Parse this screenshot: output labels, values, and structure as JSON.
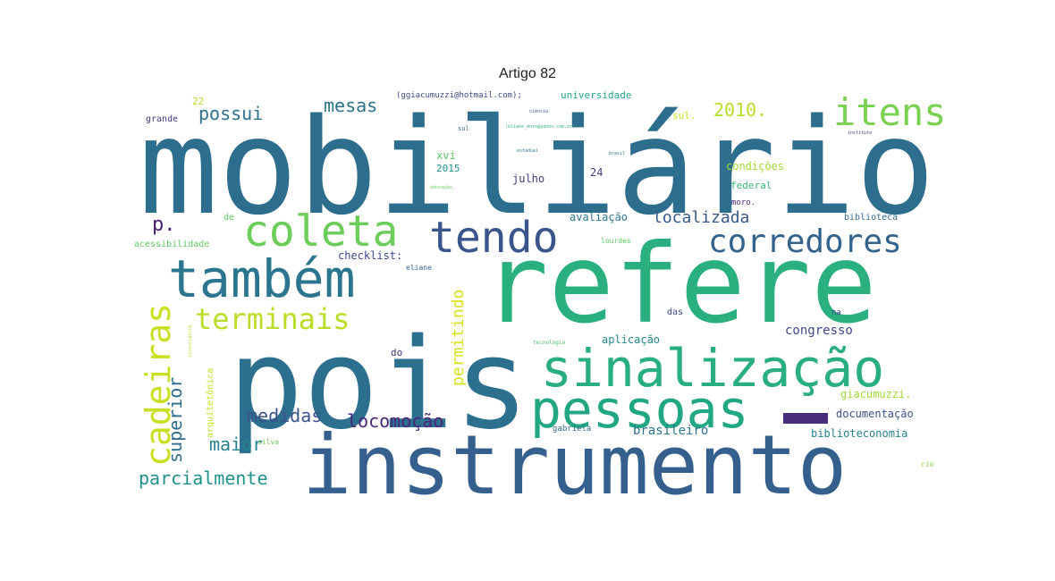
{
  "title": "Artigo 82",
  "chart_data": {
    "type": "wordcloud",
    "title": "Artigo 82",
    "colormap": "viridis",
    "words": [
      {
        "text": "mobiliário",
        "color": "#2d6e8e"
      },
      {
        "text": "refere",
        "color": "#2ab07f"
      },
      {
        "text": "pois",
        "color": "#2c6f8e"
      },
      {
        "text": "instrumento",
        "color": "#35608d"
      },
      {
        "text": "sinalização",
        "color": "#28ae80"
      },
      {
        "text": "pessoas",
        "color": "#22a785"
      },
      {
        "text": "também",
        "color": "#2b758e"
      },
      {
        "text": "coleta",
        "color": "#6ccd5a"
      },
      {
        "text": "tendo",
        "color": "#3a548c"
      },
      {
        "text": "itens",
        "color": "#7ad151"
      },
      {
        "text": "corredores",
        "color": "#33638d"
      },
      {
        "text": "cadeiras",
        "color": "#c8e020"
      },
      {
        "text": "terminais",
        "color": "#bade28"
      },
      {
        "text": "medidas",
        "color": "#3b528b"
      },
      {
        "text": "locomoção",
        "color": "#482878"
      },
      {
        "text": "superior",
        "color": "#2e6e8e"
      },
      {
        "text": "maior",
        "color": "#26828e"
      },
      {
        "text": "parcialmente",
        "color": "#21918c"
      },
      {
        "text": "possui",
        "color": "#2d718e"
      },
      {
        "text": "mesas",
        "color": "#2c728e"
      },
      {
        "text": "2010.",
        "color": "#b5de2b"
      },
      {
        "text": "localizada",
        "color": "#38588c"
      },
      {
        "text": "permitindo",
        "color": "#d8e219"
      },
      {
        "text": "p.",
        "color": "#481f70"
      },
      {
        "text": "brasileiro",
        "color": "#2c728e"
      },
      {
        "text": "congresso",
        "color": "#3e4989"
      },
      {
        "text": "documentação",
        "color": "#3b528b"
      },
      {
        "text": "biblioteconomia",
        "color": "#26828e"
      },
      {
        "text": "giacumuzzi.",
        "color": "#a0da39"
      },
      {
        "text": "aplicação",
        "color": "#23888e"
      },
      {
        "text": "avaliação",
        "color": "#2a788e"
      },
      {
        "text": "condições",
        "color": "#a5db36"
      },
      {
        "text": "federal",
        "color": "#35b779"
      },
      {
        "text": "checklist:",
        "color": "#3e4989"
      },
      {
        "text": "julho",
        "color": "#443983"
      },
      {
        "text": "xvi",
        "color": "#5ec962"
      },
      {
        "text": "2015",
        "color": "#218f8d"
      },
      {
        "text": "24",
        "color": "#414487"
      },
      {
        "text": "universidade",
        "color": "#22a785"
      },
      {
        "text": "(ggiacumuzzi@hotmail.com);",
        "color": "#3e4989"
      },
      {
        "text": "sul.",
        "color": "#c8e020"
      },
      {
        "text": "22",
        "color": "#b5de2b"
      },
      {
        "text": "grande",
        "color": "#443983"
      },
      {
        "text": "acessibilidade",
        "color": "#5ec962"
      },
      {
        "text": "de",
        "color": "#5ec962"
      },
      {
        "text": "biblioteca",
        "color": "#31688e"
      },
      {
        "text": "moro.",
        "color": "#481f70"
      },
      {
        "text": "na",
        "color": "#433e85"
      },
      {
        "text": "do",
        "color": "#46337e"
      },
      {
        "text": "das",
        "color": "#3e4989"
      },
      {
        "text": "gabriela",
        "color": "#31688e"
      },
      {
        "text": "arquitetônica",
        "color": "#c8e020"
      },
      {
        "text": "silva",
        "color": "#6ccd5a"
      },
      {
        "text": "rio",
        "color": "#86d549"
      },
      {
        "text": "lourdes",
        "color": "#5ec962"
      },
      {
        "text": "eliane",
        "color": "#33638d"
      },
      {
        "text": "sul",
        "color": "#31688e"
      },
      {
        "text": "ciência",
        "color": "#3b528b"
      },
      {
        "text": "tecnologia",
        "color": "#4ac16d"
      },
      {
        "text": "estadual",
        "color": "#2a788e"
      },
      {
        "text": "(eliane_moro@yahoo.com.br);",
        "color": "#35b779"
      },
      {
        "text": "educação,",
        "color": "#6ccd5a"
      },
      {
        "text": "brasil",
        "color": "#2a788e"
      },
      {
        "text": "instituto",
        "color": "#443983"
      },
      {
        "text": "licenciatura",
        "color": "#b5de2b"
      }
    ]
  }
}
